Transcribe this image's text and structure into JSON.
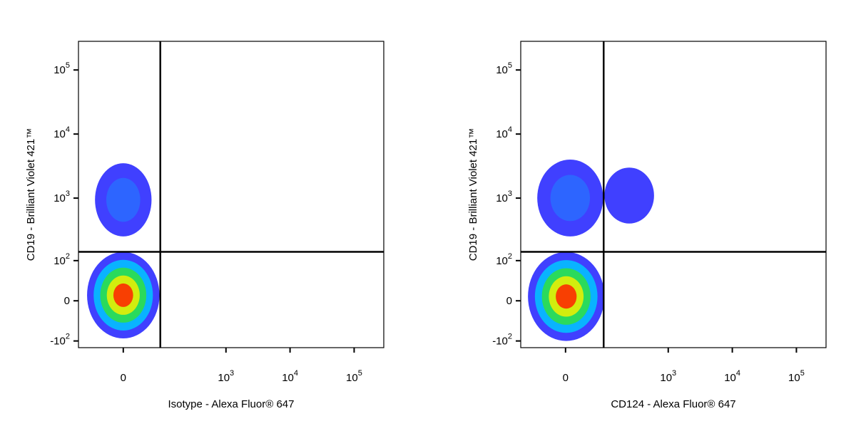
{
  "chart_data": [
    {
      "type": "density",
      "xlabel": "Isotype - Alexa Fluor® 647",
      "ylabel": "CD19 - Brilliant Violet 421™",
      "scale": "biexponential",
      "xlim": [
        -120,
        290000
      ],
      "ylim": [
        -130,
        280000
      ],
      "xticks": [
        0,
        {
          "value": 1000,
          "label": "10",
          "exponent": "3"
        },
        {
          "value": 10000,
          "label": "10",
          "exponent": "4"
        },
        {
          "value": 100000,
          "label": "10",
          "exponent": "5"
        }
      ],
      "yticks": [
        {
          "value": -100,
          "label": "-10",
          "exponent": "2"
        },
        0,
        {
          "value": 100,
          "label": "10",
          "exponent": "2"
        },
        {
          "value": 1000,
          "label": "10",
          "exponent": "3"
        },
        {
          "value": 10000,
          "label": "10",
          "exponent": "4"
        },
        {
          "value": 100000,
          "label": "10",
          "exponent": "5"
        }
      ],
      "gate": {
        "x": 88,
        "y": 141
      },
      "clusters": [
        {
          "x": [
            -85,
            85
          ],
          "y": [
            -90,
            140
          ],
          "colors": [
            "#0000ff",
            "#00c8ff",
            "#30e040",
            "#f0f000",
            "#ff2000"
          ]
        },
        {
          "x": [
            -60,
            60
          ],
          "y": [
            250,
            3500
          ],
          "colors": [
            "#0000ff",
            "#2a6cff"
          ]
        }
      ]
    },
    {
      "type": "density",
      "xlabel": "CD124 - Alexa Fluor® 647",
      "ylabel": "CD19 - Brilliant Violet 421™",
      "scale": "biexponential",
      "xlim": [
        -120,
        290000
      ],
      "ylim": [
        -130,
        280000
      ],
      "xticks": [
        0,
        {
          "value": 1000,
          "label": "10",
          "exponent": "3"
        },
        {
          "value": 10000,
          "label": "10",
          "exponent": "4"
        },
        {
          "value": 100000,
          "label": "10",
          "exponent": "5"
        }
      ],
      "yticks": [
        {
          "value": -100,
          "label": "-10",
          "exponent": "2"
        },
        0,
        {
          "value": 100,
          "label": "10",
          "exponent": "2"
        },
        {
          "value": 1000,
          "label": "10",
          "exponent": "3"
        },
        {
          "value": 10000,
          "label": "10",
          "exponent": "4"
        },
        {
          "value": 100000,
          "label": "10",
          "exponent": "5"
        }
      ],
      "gate": {
        "x": 92,
        "y": 141
      },
      "clusters": [
        {
          "x": [
            -90,
            95
          ],
          "y": [
            -100,
            140
          ],
          "colors": [
            "#0000ff",
            "#00c8ff",
            "#30e040",
            "#f0f000",
            "#ff2000"
          ]
        },
        {
          "x": [
            -60,
            90
          ],
          "y": [
            250,
            4000
          ],
          "colors": [
            "#0000ff",
            "#2a6cff"
          ]
        },
        {
          "x": [
            95,
            600
          ],
          "y": [
            400,
            3000
          ],
          "colors": [
            "#0000ff"
          ]
        }
      ]
    }
  ]
}
